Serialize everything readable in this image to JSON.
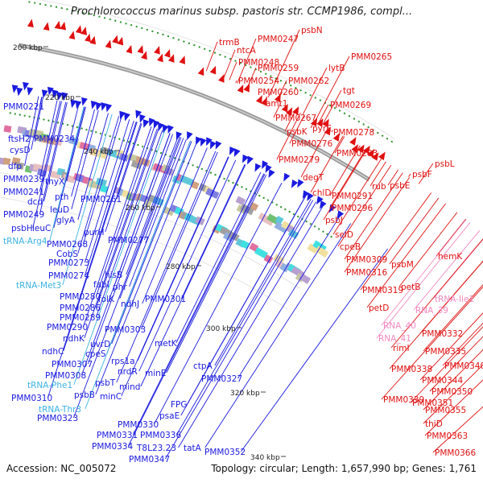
{
  "title": "Prochlorococcus marinus subsp. pastoris str. CCMP1986, compl...",
  "footer": {
    "accession": "Accession: NC_005072",
    "topology": "Topology: circular; Length: 1,657,990 bp; Genes: 1,761"
  },
  "colors": {
    "reverse_strand": "#1a1ae0",
    "forward_strand": "#e01010",
    "trna": "#3bb3e0",
    "rna": "#f08ac0",
    "backbone": "#888888"
  },
  "scale_ticks": [
    "200 kbp",
    "220 kbp",
    "240 kbp",
    "260 kbp",
    "280 kbp",
    "300 kbp",
    "320 kbp",
    "340 kbp"
  ],
  "labels_reverse": [
    {
      "text": "PMM0221",
      "kind": "gene"
    },
    {
      "text": "ftsH2",
      "kind": "gene"
    },
    {
      "text": "PMM0234",
      "kind": "gene"
    },
    {
      "text": "cysD",
      "kind": "gene"
    },
    {
      "text": "dfp",
      "kind": "gene"
    },
    {
      "text": "PMM0239",
      "kind": "gene"
    },
    {
      "text": "thyX",
      "kind": "gene"
    },
    {
      "text": "PMM0241",
      "kind": "gene"
    },
    {
      "text": "pth",
      "kind": "gene"
    },
    {
      "text": "dcd",
      "kind": "gene"
    },
    {
      "text": "leuD",
      "kind": "gene"
    },
    {
      "text": "PMM0261",
      "kind": "gene"
    },
    {
      "text": "PMM0249",
      "kind": "gene"
    },
    {
      "text": "glyA",
      "kind": "gene"
    },
    {
      "text": "psbH",
      "kind": "gene"
    },
    {
      "text": "leuC",
      "kind": "gene"
    },
    {
      "text": "tRNA-Arg4",
      "kind": "trna"
    },
    {
      "text": "purH",
      "kind": "gene"
    },
    {
      "text": "PMM0277",
      "kind": "gene"
    },
    {
      "text": "PMM0268",
      "kind": "gene"
    },
    {
      "text": "CobS",
      "kind": "gene"
    },
    {
      "text": "PMM0273",
      "kind": "gene"
    },
    {
      "text": "PMM0274",
      "kind": "gene"
    },
    {
      "text": "hisB",
      "kind": "gene"
    },
    {
      "text": "tRNA-Met3",
      "kind": "trna"
    },
    {
      "text": "fabI",
      "kind": "gene"
    },
    {
      "text": "phr",
      "kind": "gene"
    },
    {
      "text": "PMM0280",
      "kind": "gene"
    },
    {
      "text": "ndhJ",
      "kind": "gene"
    },
    {
      "text": "folK",
      "kind": "gene"
    },
    {
      "text": "PMM0301",
      "kind": "gene"
    },
    {
      "text": "PMM0286",
      "kind": "gene"
    },
    {
      "text": "PMM0289",
      "kind": "gene"
    },
    {
      "text": "PMM0290",
      "kind": "gene"
    },
    {
      "text": "PMM0303",
      "kind": "gene"
    },
    {
      "text": "ndhK",
      "kind": "gene"
    },
    {
      "text": "uvrD",
      "kind": "gene"
    },
    {
      "text": "metK",
      "kind": "gene"
    },
    {
      "text": "ndhC",
      "kind": "gene"
    },
    {
      "text": "cpeS",
      "kind": "gene"
    },
    {
      "text": "rps1a",
      "kind": "gene"
    },
    {
      "text": "PMM0307",
      "kind": "gene"
    },
    {
      "text": "nrdR",
      "kind": "gene"
    },
    {
      "text": "ctpA",
      "kind": "gene"
    },
    {
      "text": "PMM0308",
      "kind": "gene"
    },
    {
      "text": "psbT",
      "kind": "gene"
    },
    {
      "text": "minE",
      "kind": "gene"
    },
    {
      "text": "tRNA-Phe1",
      "kind": "trna"
    },
    {
      "text": "mind",
      "kind": "gene"
    },
    {
      "text": "PMM0327",
      "kind": "gene"
    },
    {
      "text": "psbB",
      "kind": "gene"
    },
    {
      "text": "minC",
      "kind": "gene"
    },
    {
      "text": "PMM0310",
      "kind": "gene"
    },
    {
      "text": "tRNA-Thr3",
      "kind": "trna"
    },
    {
      "text": "FPG",
      "kind": "gene"
    },
    {
      "text": "PMM0323",
      "kind": "gene"
    },
    {
      "text": "psaE",
      "kind": "gene"
    },
    {
      "text": "PMM0330",
      "kind": "gene"
    },
    {
      "text": "PMM0331",
      "kind": "gene"
    },
    {
      "text": "PMM0336",
      "kind": "gene"
    },
    {
      "text": "PMM0334",
      "kind": "gene"
    },
    {
      "text": "T8L23.23",
      "kind": "gene"
    },
    {
      "text": "tatA",
      "kind": "gene"
    },
    {
      "text": "PMM0352",
      "kind": "gene"
    },
    {
      "text": "PMM0347",
      "kind": "gene"
    }
  ],
  "labels_forward": [
    {
      "text": "psbN",
      "kind": "gene"
    },
    {
      "text": "PMM0247",
      "kind": "gene"
    },
    {
      "text": "trmB",
      "kind": "gene"
    },
    {
      "text": "ntcA",
      "kind": "gene"
    },
    {
      "text": "PMM0248",
      "kind": "gene"
    },
    {
      "text": "PMM0265",
      "kind": "gene"
    },
    {
      "text": "PMM0259",
      "kind": "gene"
    },
    {
      "text": "lytB",
      "kind": "gene"
    },
    {
      "text": "PMM0254",
      "kind": "gene"
    },
    {
      "text": "PMM0262",
      "kind": "gene"
    },
    {
      "text": "PMM0260",
      "kind": "gene"
    },
    {
      "text": "tgt",
      "kind": "gene"
    },
    {
      "text": "amt1",
      "kind": "gene"
    },
    {
      "text": "PMM0269",
      "kind": "gene"
    },
    {
      "text": "PMM0267",
      "kind": "gene"
    },
    {
      "text": "psbK",
      "kind": "gene"
    },
    {
      "text": "pyrE",
      "kind": "gene"
    },
    {
      "text": "PMM0278",
      "kind": "gene"
    },
    {
      "text": "PMM0276",
      "kind": "gene"
    },
    {
      "text": "PMM0283",
      "kind": "gene"
    },
    {
      "text": "PMM0279",
      "kind": "gene"
    },
    {
      "text": "psbL",
      "kind": "gene"
    },
    {
      "text": "degT",
      "kind": "gene"
    },
    {
      "text": "psbF",
      "kind": "gene"
    },
    {
      "text": "rub",
      "kind": "gene"
    },
    {
      "text": "psbE",
      "kind": "gene"
    },
    {
      "text": "chlD",
      "kind": "gene"
    },
    {
      "text": "PMM0291",
      "kind": "gene"
    },
    {
      "text": "PMM0296",
      "kind": "gene"
    },
    {
      "text": "psbJ",
      "kind": "gene"
    },
    {
      "text": "selD",
      "kind": "gene"
    },
    {
      "text": "cpeB",
      "kind": "gene"
    },
    {
      "text": "hemK",
      "kind": "gene"
    },
    {
      "text": "PMM0309",
      "kind": "gene"
    },
    {
      "text": "psbM",
      "kind": "gene"
    },
    {
      "text": "PMM0316",
      "kind": "gene"
    },
    {
      "text": "petB",
      "kind": "gene"
    },
    {
      "text": "PMM0319",
      "kind": "gene"
    },
    {
      "text": "tRNA-Ile1",
      "kind": "rna"
    },
    {
      "text": "petD",
      "kind": "gene"
    },
    {
      "text": "RNA_39",
      "kind": "rna"
    },
    {
      "text": "RNA_40",
      "kind": "rna"
    },
    {
      "text": "PMM0332",
      "kind": "gene"
    },
    {
      "text": "RNA_41",
      "kind": "rna"
    },
    {
      "text": "rimI",
      "kind": "gene"
    },
    {
      "text": "PMM0335",
      "kind": "gene"
    },
    {
      "text": "PMM0340",
      "kind": "gene"
    },
    {
      "text": "PMM0338",
      "kind": "gene"
    },
    {
      "text": "PMM0344",
      "kind": "gene"
    },
    {
      "text": "PMM0350",
      "kind": "gene"
    },
    {
      "text": "PMM0339",
      "kind": "gene"
    },
    {
      "text": "PMM0351",
      "kind": "gene"
    },
    {
      "text": "PMM0355",
      "kind": "gene"
    },
    {
      "text": "thiD",
      "kind": "gene"
    },
    {
      "text": "PMM0363",
      "kind": "gene"
    },
    {
      "text": "PMM0366",
      "kind": "gene"
    }
  ]
}
